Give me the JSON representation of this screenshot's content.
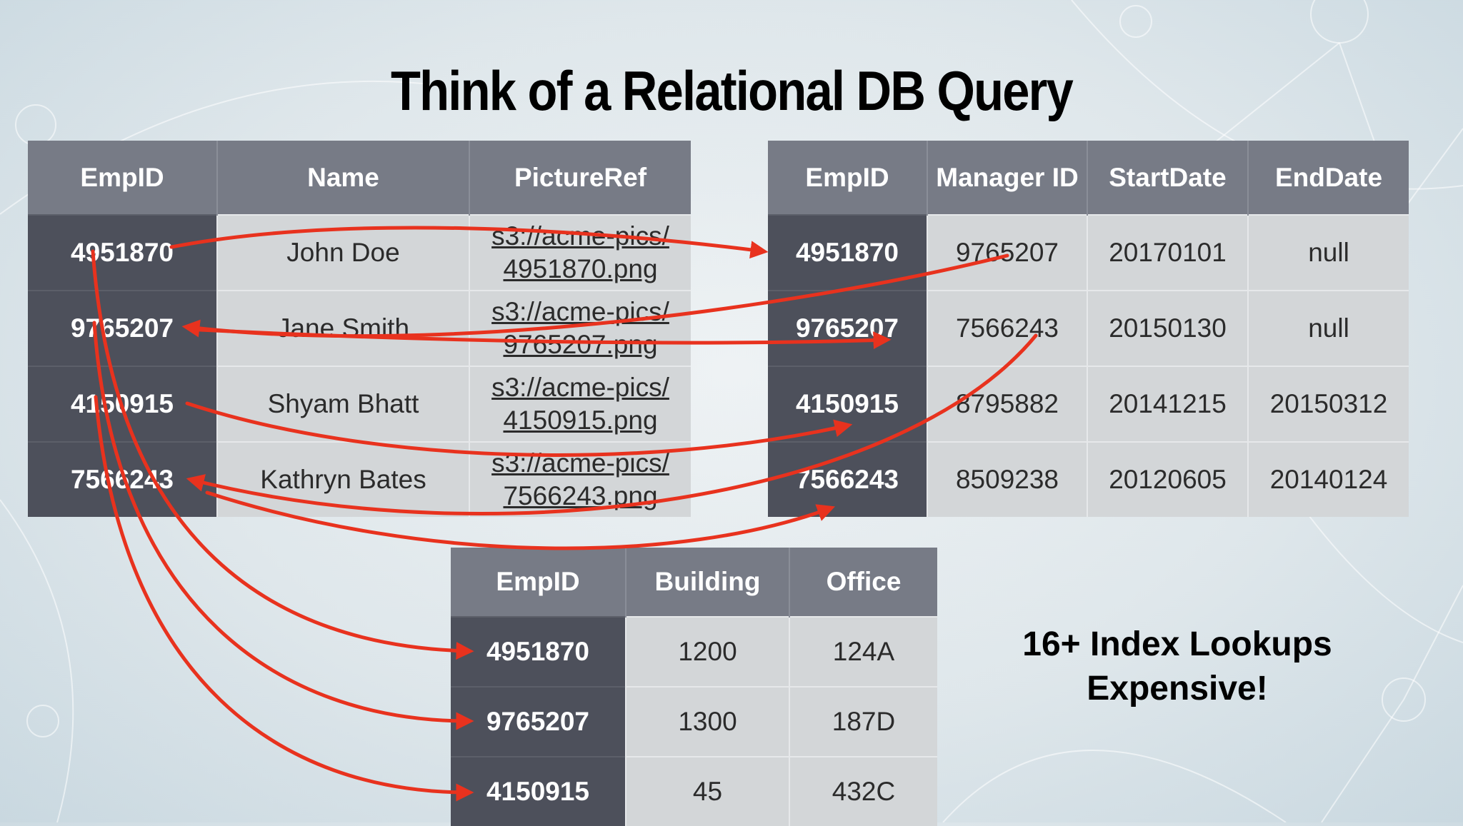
{
  "slide": {
    "title": "Think of a Relational DB Query",
    "note_line1": "16+ Index Lookups",
    "note_line2": "Expensive!"
  },
  "colors": {
    "header_bg": "#777b86",
    "key_cell_bg": "#4d505b",
    "cell_bg": "#d3d6d8",
    "arrow": "#e8321e"
  },
  "employees_table": {
    "headers": [
      "EmpID",
      "Name",
      "PictureRef"
    ],
    "rows": [
      {
        "empid": "4951870",
        "name": "John Doe",
        "ref1": "s3://acme-pics/",
        "ref2": "4951870.png"
      },
      {
        "empid": "9765207",
        "name": "Jane Smith",
        "ref1": "s3://acme-pics/",
        "ref2": "9765207.png"
      },
      {
        "empid": "4150915",
        "name": "Shyam Bhatt",
        "ref1": "s3://acme-pics/",
        "ref2": "4150915.png"
      },
      {
        "empid": "7566243",
        "name": "Kathryn Bates",
        "ref1": "s3://acme-pics/",
        "ref2": "7566243.png"
      }
    ]
  },
  "managers_table": {
    "headers": [
      "EmpID",
      "Manager ID",
      "StartDate",
      "EndDate"
    ],
    "rows": [
      {
        "empid": "4951870",
        "manager": "9765207",
        "start": "20170101",
        "end": "null"
      },
      {
        "empid": "9765207",
        "manager": "7566243",
        "start": "20150130",
        "end": "null"
      },
      {
        "empid": "4150915",
        "manager": "8795882",
        "start": "20141215",
        "end": "20150312"
      },
      {
        "empid": "7566243",
        "manager": "8509238",
        "start": "20120605",
        "end": "20140124"
      }
    ]
  },
  "locations_table": {
    "headers": [
      "EmpID",
      "Building",
      "Office"
    ],
    "rows": [
      {
        "empid": "4951870",
        "building": "1200",
        "office": "124A"
      },
      {
        "empid": "9765207",
        "building": "1300",
        "office": "187D"
      },
      {
        "empid": "4150915",
        "building": "45",
        "office": "432C"
      }
    ]
  }
}
